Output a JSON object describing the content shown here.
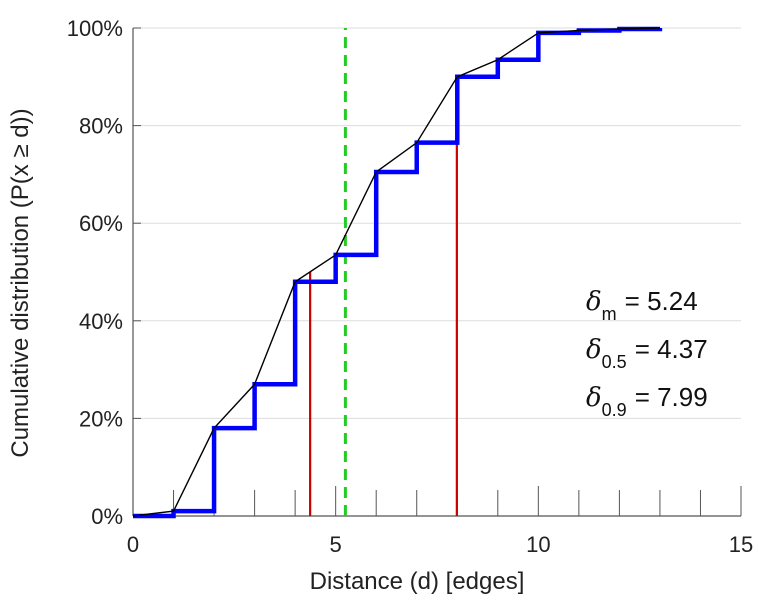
{
  "chart_data": {
    "type": "line",
    "xlabel": "Distance (d) [edges]",
    "ylabel": "Cumulative distribution (P(x ≥ d))",
    "xlim": [
      0,
      15
    ],
    "ylim": [
      0,
      100
    ],
    "x_ticks": [
      "0",
      "5",
      "10",
      "15"
    ],
    "x_tick_values": [
      0,
      5,
      10,
      15
    ],
    "y_ticks": [
      "0%",
      "20%",
      "40%",
      "60%",
      "80%",
      "100%"
    ],
    "y_tick_values": [
      0,
      20,
      40,
      60,
      80,
      100
    ],
    "grid": "horizontal",
    "colors": {
      "step": "#0000ff",
      "line": "#000000",
      "percentile": "#cc0000",
      "mean": "#22cc22",
      "grid": "#dddddd"
    },
    "series": [
      {
        "style": "step",
        "x": [
          0,
          1,
          2,
          3,
          4,
          5,
          6,
          7,
          8,
          9,
          10,
          11,
          12,
          13
        ],
        "values": [
          0,
          1,
          18,
          27,
          48,
          53.5,
          70.5,
          76.5,
          90,
          93.5,
          99,
          99.5,
          99.8,
          100
        ]
      },
      {
        "style": "line",
        "x": [
          0,
          1,
          2,
          3,
          4,
          5,
          6,
          7,
          8,
          9,
          10,
          11,
          12,
          13
        ],
        "values": [
          0,
          1,
          18,
          27,
          48,
          53.5,
          70.5,
          76.5,
          90,
          93.5,
          99,
          99.5,
          99.8,
          100
        ]
      }
    ],
    "reference_lines": [
      {
        "style": "solid",
        "x": 4.37,
        "y": 50
      },
      {
        "style": "solid",
        "x": 7.99,
        "y": 90
      },
      {
        "style": "dashed",
        "x": 5.24,
        "y": 100
      }
    ],
    "annotations": [
      {
        "symbol": "δ",
        "sub": "m",
        "text": "= 5.24"
      },
      {
        "symbol": "δ",
        "sub": "0.5",
        "text": "= 4.37"
      },
      {
        "symbol": "δ",
        "sub": "0.9",
        "text": "= 7.99"
      }
    ]
  }
}
